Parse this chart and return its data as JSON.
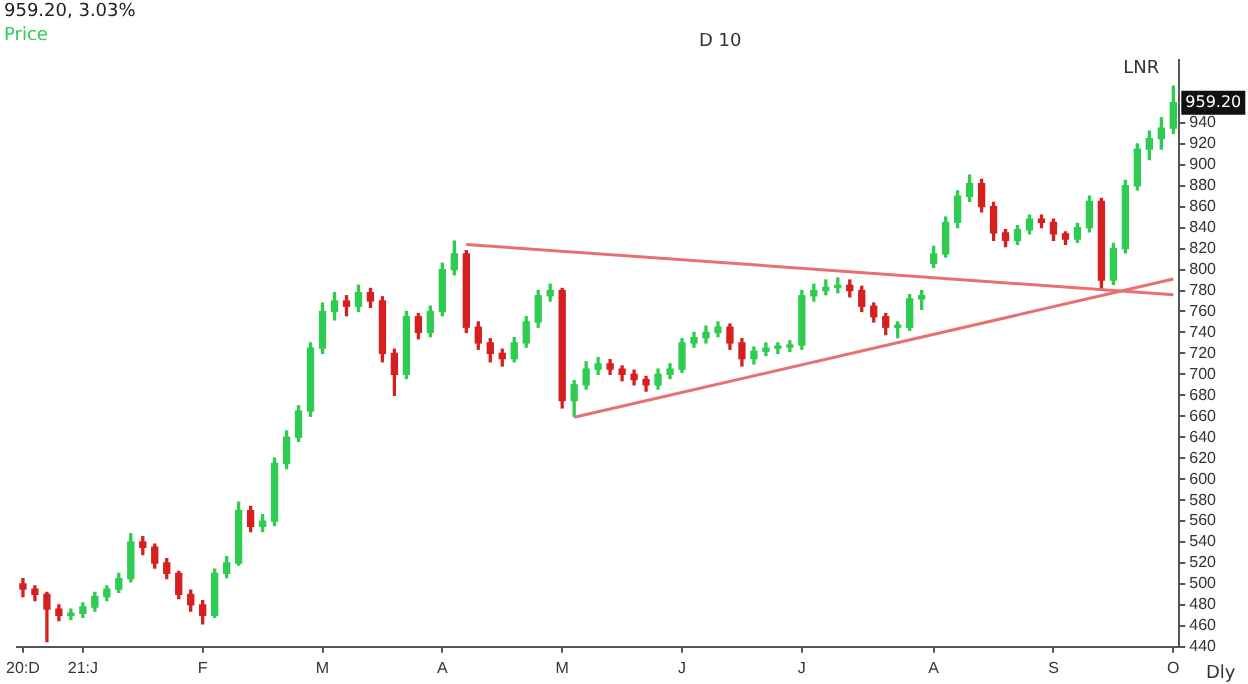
{
  "chart_data": {
    "type": "candlestick",
    "title": "959.20, 3.03%",
    "subtitle": "Price",
    "categories": [
      "20:D",
      null,
      null,
      null,
      null,
      "21:J",
      null,
      null,
      null,
      null,
      null,
      null,
      null,
      null,
      null,
      "F",
      null,
      null,
      null,
      null,
      null,
      null,
      null,
      null,
      null,
      "M",
      null,
      null,
      null,
      null,
      null,
      null,
      null,
      null,
      null,
      "A",
      null,
      null,
      null,
      null,
      null,
      null,
      null,
      null,
      null,
      "M",
      null,
      null,
      null,
      null,
      null,
      null,
      null,
      null,
      null,
      "J",
      null,
      null,
      null,
      null,
      null,
      null,
      null,
      null,
      null,
      "J",
      null,
      null,
      null,
      null,
      null,
      null,
      null,
      null,
      null,
      null,
      "A",
      null,
      null,
      null,
      null,
      null,
      null,
      null,
      null,
      null,
      "S",
      null,
      null,
      null,
      null,
      null,
      null,
      null,
      null,
      null,
      "O"
    ],
    "ohlc": [
      [
        500,
        505,
        488,
        495
      ],
      [
        495,
        498,
        484,
        490
      ],
      [
        490,
        492,
        445,
        476
      ],
      [
        476,
        480,
        465,
        470
      ],
      [
        470,
        476,
        466,
        472
      ],
      [
        472,
        482,
        468,
        478
      ],
      [
        478,
        492,
        474,
        488
      ],
      [
        488,
        498,
        484,
        495
      ],
      [
        495,
        510,
        492,
        505
      ],
      [
        505,
        548,
        502,
        540
      ],
      [
        540,
        545,
        528,
        535
      ],
      [
        535,
        538,
        515,
        520
      ],
      [
        520,
        524,
        505,
        510
      ],
      [
        510,
        512,
        486,
        490
      ],
      [
        490,
        494,
        474,
        480
      ],
      [
        480,
        484,
        462,
        470
      ],
      [
        470,
        514,
        468,
        510
      ],
      [
        510,
        526,
        506,
        520
      ],
      [
        520,
        578,
        518,
        570
      ],
      [
        570,
        574,
        550,
        555
      ],
      [
        555,
        566,
        550,
        560
      ],
      [
        560,
        620,
        556,
        615
      ],
      [
        615,
        646,
        610,
        640
      ],
      [
        640,
        670,
        636,
        665
      ],
      [
        665,
        730,
        660,
        725
      ],
      [
        725,
        768,
        720,
        760
      ],
      [
        760,
        778,
        752,
        770
      ],
      [
        770,
        775,
        756,
        765
      ],
      [
        765,
        785,
        760,
        778
      ],
      [
        778,
        782,
        764,
        770
      ],
      [
        770,
        774,
        712,
        720
      ],
      [
        720,
        724,
        680,
        700
      ],
      [
        700,
        760,
        696,
        755
      ],
      [
        755,
        758,
        734,
        740
      ],
      [
        740,
        765,
        736,
        760
      ],
      [
        760,
        806,
        756,
        800
      ],
      [
        800,
        827,
        795,
        815
      ],
      [
        815,
        818,
        740,
        745
      ],
      [
        745,
        750,
        724,
        730
      ],
      [
        730,
        734,
        712,
        720
      ],
      [
        720,
        724,
        708,
        715
      ],
      [
        715,
        735,
        712,
        730
      ],
      [
        730,
        755,
        726,
        750
      ],
      [
        750,
        780,
        745,
        775
      ],
      [
        775,
        786,
        770,
        780
      ],
      [
        780,
        782,
        668,
        675
      ],
      [
        675,
        694,
        660,
        690
      ],
      [
        690,
        712,
        686,
        705
      ],
      [
        705,
        716,
        700,
        710
      ],
      [
        710,
        714,
        700,
        705
      ],
      [
        705,
        708,
        694,
        700
      ],
      [
        700,
        704,
        690,
        695
      ],
      [
        695,
        698,
        684,
        690
      ],
      [
        690,
        705,
        686,
        700
      ],
      [
        700,
        710,
        696,
        705
      ],
      [
        705,
        734,
        702,
        730
      ],
      [
        730,
        740,
        726,
        735
      ],
      [
        735,
        746,
        730,
        740
      ],
      [
        740,
        750,
        736,
        745
      ],
      [
        745,
        748,
        724,
        730
      ],
      [
        730,
        734,
        708,
        715
      ],
      [
        715,
        726,
        710,
        722
      ],
      [
        722,
        730,
        718,
        725
      ],
      [
        725,
        730,
        720,
        726
      ],
      [
        726,
        732,
        722,
        728
      ],
      [
        728,
        780,
        724,
        775
      ],
      [
        775,
        786,
        770,
        780
      ],
      [
        780,
        790,
        776,
        783
      ],
      [
        783,
        792,
        778,
        785
      ],
      [
        785,
        790,
        774,
        780
      ],
      [
        780,
        784,
        760,
        765
      ],
      [
        765,
        768,
        750,
        755
      ],
      [
        755,
        758,
        738,
        745
      ],
      [
        745,
        750,
        735,
        745
      ],
      [
        745,
        776,
        742,
        772
      ],
      [
        772,
        780,
        762,
        775
      ],
      [
        806,
        822,
        802,
        815
      ],
      [
        815,
        850,
        812,
        845
      ],
      [
        845,
        875,
        840,
        870
      ],
      [
        870,
        890,
        865,
        882
      ],
      [
        882,
        886,
        855,
        860
      ],
      [
        860,
        864,
        828,
        835
      ],
      [
        835,
        838,
        822,
        828
      ],
      [
        828,
        842,
        824,
        838
      ],
      [
        838,
        852,
        834,
        848
      ],
      [
        848,
        852,
        840,
        845
      ],
      [
        845,
        848,
        828,
        834
      ],
      [
        834,
        836,
        824,
        829
      ],
      [
        829,
        844,
        826,
        840
      ],
      [
        840,
        870,
        836,
        865
      ],
      [
        865,
        868,
        781,
        790
      ],
      [
        790,
        825,
        786,
        820
      ],
      [
        820,
        885,
        816,
        880
      ],
      [
        880,
        920,
        876,
        915
      ],
      [
        915,
        932,
        905,
        925
      ],
      [
        925,
        945,
        915,
        935
      ],
      [
        935,
        975,
        930,
        959.2
      ]
    ],
    "series": [
      {
        "type": "line",
        "color": "#e87070",
        "values": [
          null,
          null,
          null,
          null,
          null,
          null,
          null,
          null,
          null,
          null,
          null,
          null,
          null,
          null,
          null,
          null,
          null,
          null,
          null,
          null,
          null,
          null,
          null,
          null,
          null,
          null,
          null,
          null,
          null,
          null,
          null,
          null,
          null,
          null,
          null,
          null,
          null,
          824,
          null,
          null,
          null,
          null,
          null,
          null,
          null,
          null,
          null,
          null,
          null,
          null,
          null,
          null,
          null,
          null,
          null,
          null,
          null,
          null,
          null,
          null,
          null,
          null,
          null,
          null,
          null,
          null,
          null,
          null,
          null,
          null,
          null,
          null,
          null,
          null,
          null,
          null,
          null,
          null,
          null,
          null,
          null,
          null,
          null,
          null,
          null,
          null,
          null,
          null,
          null,
          null,
          null,
          null,
          null,
          null,
          null,
          null,
          776
        ]
      },
      {
        "type": "line",
        "color": "#e87070",
        "values": [
          null,
          null,
          null,
          null,
          null,
          null,
          null,
          null,
          null,
          null,
          null,
          null,
          null,
          null,
          null,
          null,
          null,
          null,
          null,
          null,
          null,
          null,
          null,
          null,
          null,
          null,
          null,
          null,
          null,
          null,
          null,
          null,
          null,
          null,
          null,
          null,
          null,
          null,
          null,
          null,
          null,
          null,
          null,
          null,
          null,
          null,
          659,
          null,
          null,
          null,
          null,
          null,
          null,
          null,
          null,
          null,
          null,
          null,
          null,
          null,
          null,
          null,
          null,
          null,
          null,
          null,
          null,
          null,
          null,
          null,
          null,
          null,
          null,
          null,
          null,
          null,
          null,
          null,
          null,
          null,
          null,
          null,
          null,
          null,
          null,
          null,
          null,
          null,
          null,
          null,
          null,
          null,
          null,
          null,
          null,
          null,
          791
        ]
      }
    ],
    "ylim": [
      440,
      1000
    ],
    "yticks": [
      440,
      460,
      480,
      500,
      520,
      540,
      560,
      580,
      600,
      620,
      640,
      660,
      680,
      700,
      720,
      740,
      760,
      780,
      800,
      820,
      840,
      860,
      880,
      900,
      920,
      940
    ],
    "annotations": [
      "D 10",
      "LNR",
      "Dly",
      "959.20"
    ]
  }
}
